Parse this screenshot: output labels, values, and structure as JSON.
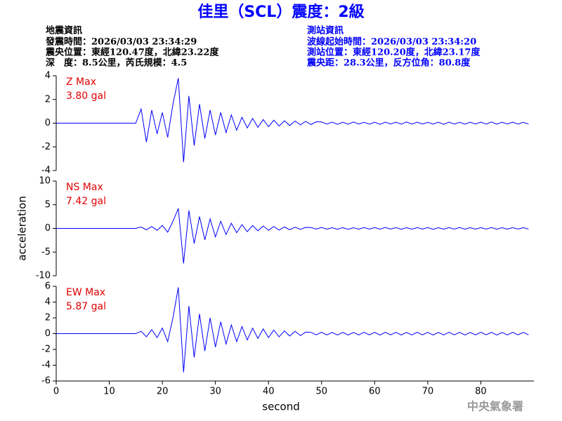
{
  "header": {
    "title": "佳里（SCL）震度：2級",
    "left": [
      "地震資訊",
      "發震時間：2026/03/03 23:34:29",
      "震央位置：東經120.47度，北緯23.22度",
      "深　度：8.5公里，芮氏規模：4.5"
    ],
    "right": [
      "測站資訊",
      "波線起始時間：2026/03/03 23:34:20",
      "測站位置：東經120.20度，北緯23.17度",
      "震央距：28.3公里，反方位角：80.8度"
    ]
  },
  "footer": "中央氣象署",
  "chart_data": [
    {
      "type": "line",
      "annotations": [
        "Z Max",
        "3.80 gal"
      ],
      "color": "#0000ff",
      "xlim": [
        0,
        90
      ],
      "ylim": [
        -4,
        4
      ],
      "yticks": [
        -4,
        -2,
        0,
        2,
        4
      ],
      "x": [
        0,
        1,
        2,
        3,
        4,
        5,
        6,
        7,
        8,
        9,
        10,
        11,
        12,
        13,
        14,
        15,
        16,
        17,
        18,
        19,
        20,
        21,
        22,
        23,
        24,
        25,
        26,
        27,
        28,
        29,
        30,
        31,
        32,
        33,
        34,
        35,
        36,
        37,
        38,
        39,
        40,
        41,
        42,
        43,
        44,
        45,
        46,
        47,
        48,
        49,
        50,
        51,
        52,
        53,
        54,
        55,
        56,
        57,
        58,
        59,
        60,
        61,
        62,
        63,
        64,
        65,
        66,
        67,
        68,
        69,
        70,
        71,
        72,
        73,
        74,
        75,
        76,
        77,
        78,
        79,
        80,
        81,
        82,
        83,
        84,
        85,
        86,
        87,
        88,
        89
      ],
      "values": [
        0,
        0,
        0,
        0,
        0,
        0,
        0,
        0,
        0,
        0,
        0,
        0,
        0,
        0,
        0,
        0,
        1.2,
        -1.6,
        1.1,
        -0.9,
        0.9,
        -1.2,
        1.6,
        3.8,
        -3.3,
        2.3,
        -1.9,
        1.6,
        -1.3,
        1.1,
        -1.0,
        0.9,
        -0.8,
        0.7,
        -0.6,
        0.5,
        -0.4,
        0.4,
        -0.35,
        0.3,
        -0.3,
        0.25,
        -0.25,
        0.2,
        -0.2,
        0.18,
        -0.15,
        0.15,
        -0.12,
        0.12,
        0.1,
        -0.08,
        0.09,
        -0.1,
        0.08,
        -0.09,
        0.1,
        -0.08,
        0.07,
        -0.09,
        0.08,
        -0.1,
        0.09,
        -0.07,
        0.08,
        -0.09,
        0.1,
        -0.08,
        0.09,
        -0.08,
        0.07,
        -0.09,
        0.08,
        -0.1,
        0.09,
        -0.08,
        0.07,
        -0.09,
        0.08,
        -0.07,
        0.09,
        -0.08,
        0.1,
        -0.09,
        0.08,
        -0.07,
        0.09,
        -0.08,
        0.07,
        -0.08
      ]
    },
    {
      "type": "line",
      "annotations": [
        "NS Max",
        "7.42 gal"
      ],
      "ylabel": "acceleration",
      "color": "#0000ff",
      "xlim": [
        0,
        90
      ],
      "ylim": [
        -10,
        10
      ],
      "yticks": [
        -10,
        -5,
        0,
        5,
        10
      ],
      "x": [
        0,
        1,
        2,
        3,
        4,
        5,
        6,
        7,
        8,
        9,
        10,
        11,
        12,
        13,
        14,
        15,
        16,
        17,
        18,
        19,
        20,
        21,
        22,
        23,
        24,
        25,
        26,
        27,
        28,
        29,
        30,
        31,
        32,
        33,
        34,
        35,
        36,
        37,
        38,
        39,
        40,
        41,
        42,
        43,
        44,
        45,
        46,
        47,
        48,
        49,
        50,
        51,
        52,
        53,
        54,
        55,
        56,
        57,
        58,
        59,
        60,
        61,
        62,
        63,
        64,
        65,
        66,
        67,
        68,
        69,
        70,
        71,
        72,
        73,
        74,
        75,
        76,
        77,
        78,
        79,
        80,
        81,
        82,
        83,
        84,
        85,
        86,
        87,
        88,
        89
      ],
      "values": [
        0,
        0,
        0,
        0,
        0,
        0,
        0,
        0,
        0,
        0,
        0,
        0,
        0,
        0,
        0,
        0,
        0.3,
        -0.3,
        0.4,
        -0.4,
        0.6,
        -0.8,
        1.5,
        4.2,
        -7.4,
        3.8,
        -3.2,
        2.5,
        -2.4,
        2.0,
        -1.8,
        1.5,
        -1.3,
        1.1,
        -0.9,
        0.8,
        -0.7,
        0.6,
        -0.5,
        0.5,
        -0.4,
        0.4,
        -0.35,
        0.3,
        -0.3,
        0.25,
        -0.2,
        0.2,
        0.18,
        -0.15,
        0.2,
        -0.17,
        0.15,
        -0.18,
        0.16,
        -0.2,
        0.15,
        -0.17,
        0.18,
        -0.15,
        0.17,
        -0.16,
        0.2,
        -0.15,
        0.16,
        -0.18,
        0.15,
        -0.17,
        0.16,
        -0.15,
        0.18,
        -0.2,
        0.15,
        -0.16,
        0.17,
        -0.15,
        0.18,
        -0.16,
        0.15,
        -0.17,
        0.16,
        -0.15,
        0.18,
        -0.16,
        0.15,
        -0.17,
        0.16,
        -0.15,
        0.17,
        -0.15
      ]
    },
    {
      "type": "line",
      "annotations": [
        "EW Max",
        "5.87 gal"
      ],
      "xlabel": "second",
      "color": "#0000ff",
      "xlim": [
        0,
        90
      ],
      "xticks": [
        0,
        10,
        20,
        30,
        40,
        50,
        60,
        70,
        80
      ],
      "ylim": [
        -6,
        6
      ],
      "yticks": [
        -6,
        -4,
        -2,
        0,
        2,
        4,
        6
      ],
      "x": [
        0,
        1,
        2,
        3,
        4,
        5,
        6,
        7,
        8,
        9,
        10,
        11,
        12,
        13,
        14,
        15,
        16,
        17,
        18,
        19,
        20,
        21,
        22,
        23,
        24,
        25,
        26,
        27,
        28,
        29,
        30,
        31,
        32,
        33,
        34,
        35,
        36,
        37,
        38,
        39,
        40,
        41,
        42,
        43,
        44,
        45,
        46,
        47,
        48,
        49,
        50,
        51,
        52,
        53,
        54,
        55,
        56,
        57,
        58,
        59,
        60,
        61,
        62,
        63,
        64,
        65,
        66,
        67,
        68,
        69,
        70,
        71,
        72,
        73,
        74,
        75,
        76,
        77,
        78,
        79,
        80,
        81,
        82,
        83,
        84,
        85,
        86,
        87,
        88,
        89
      ],
      "values": [
        0,
        0,
        0,
        0,
        0,
        0,
        0,
        0,
        0,
        0,
        0,
        0,
        0,
        0,
        0,
        0,
        0.3,
        -0.4,
        0.5,
        -0.5,
        0.7,
        -1.0,
        2.0,
        5.87,
        -4.9,
        3.5,
        -3.0,
        2.5,
        -2.2,
        2.0,
        -1.7,
        1.5,
        -1.3,
        1.1,
        -1.0,
        0.9,
        -0.8,
        0.7,
        -0.6,
        0.6,
        -0.5,
        0.45,
        -0.4,
        0.35,
        -0.3,
        0.3,
        -0.25,
        0.2,
        0.16,
        -0.15,
        0.18,
        -0.16,
        0.15,
        -0.17,
        0.16,
        -0.18,
        0.15,
        -0.16,
        0.17,
        -0.15,
        0.16,
        -0.17,
        0.18,
        -0.15,
        0.16,
        -0.17,
        0.15,
        -0.16,
        0.17,
        -0.15,
        0.16,
        -0.18,
        0.15,
        -0.16,
        0.17,
        -0.15,
        0.16,
        -0.17,
        0.15,
        -0.16,
        0.17,
        -0.15,
        0.16,
        -0.17,
        0.15,
        -0.16,
        0.17,
        -0.15,
        0.16,
        -0.15
      ]
    }
  ]
}
